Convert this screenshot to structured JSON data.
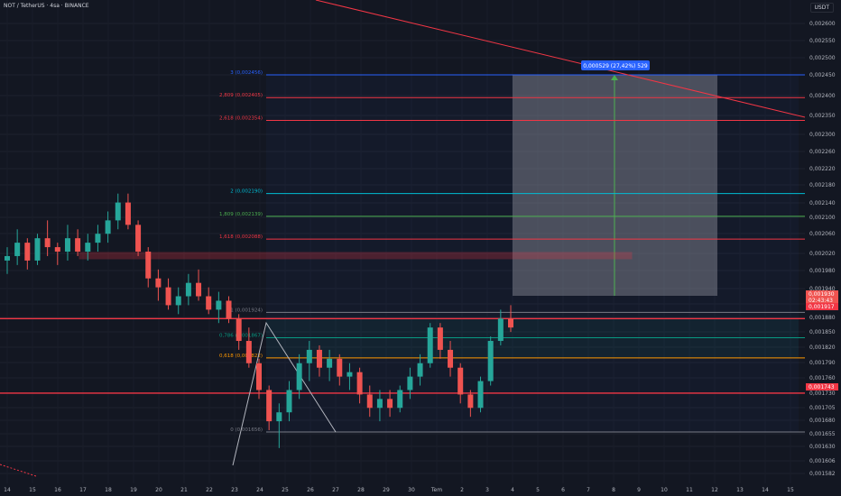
{
  "header": {
    "symbol": "NOT / TetherUS · 4sa · BINANCE",
    "currency": "USDT"
  },
  "colors": {
    "background": "#131722",
    "up": "#26a69a",
    "down": "#ef5350",
    "fib_top": "#2962ff",
    "fib_red": "#f23645",
    "fib_cyan": "#00bcd4",
    "fib_green": "#4caf50",
    "fib_orange": "#ff9800",
    "fib_teal": "#089981",
    "hline": "#f23645",
    "tooltip": "#2962ff"
  },
  "chart_data": {
    "type": "candlestick",
    "x_labels": [
      "14",
      "15",
      "16",
      "17",
      "18",
      "19",
      "20",
      "21",
      "22",
      "23",
      "24",
      "25",
      "26",
      "27",
      "28",
      "29",
      "30",
      "Tem",
      "2",
      "3",
      "4",
      "5",
      "6",
      "7",
      "8",
      "9",
      "10",
      "11",
      "12",
      "13",
      "14",
      "15"
    ],
    "y_ticks": [
      "0,002600",
      "0,002550",
      "0,002500",
      "0,002450",
      "0,002400",
      "0,002350",
      "0,002300",
      "0,002260",
      "0,002220",
      "0,002180",
      "0,002140",
      "0,002100",
      "0,002060",
      "0,002020",
      "0,001980",
      "0,001940",
      "0,001900",
      "0,001880",
      "0,001850",
      "0,001820",
      "0,001790",
      "0,001760",
      "0,001730",
      "0,001705",
      "0,001680",
      "0,001655",
      "0,001630",
      "0,001606",
      "0,001582"
    ],
    "fib_levels": [
      {
        "label": "3 (0,002456)",
        "value": 0.002456,
        "color": "#2962ff"
      },
      {
        "label": "2,809 (0,002405)",
        "value": 0.002405,
        "color": "#f23645"
      },
      {
        "label": "2,618 (0,002354)",
        "value": 0.002354,
        "color": "#f23645"
      },
      {
        "label": "2 (0,002190)",
        "value": 0.00219,
        "color": "#00bcd4"
      },
      {
        "label": "1,809 (0,002139)",
        "value": 0.002139,
        "color": "#4caf50"
      },
      {
        "label": "1,618 (0,002088)",
        "value": 0.002088,
        "color": "#f23645"
      },
      {
        "label": "1 (0,001924)",
        "value": 0.001924,
        "color": "#787b86"
      },
      {
        "label": "0,786 (0,001867)",
        "value": 0.001867,
        "color": "#089981"
      },
      {
        "label": "0,618 (0,001822)",
        "value": 0.001822,
        "color": "#ff9800"
      },
      {
        "label": "0 (0,001656)",
        "value": 0.001656,
        "color": "#787b86"
      }
    ],
    "horizontal_lines": [
      0.00191,
      0.001743
    ],
    "price_badges": [
      {
        "text": "0,001930",
        "color": "#ef5350"
      },
      {
        "text": "02:43:43",
        "color": "#ef5350"
      },
      {
        "text": "0,001917",
        "color": "#f23645"
      },
      {
        "text": "0,001743",
        "color": "#f23645"
      }
    ],
    "measure_label": "0,000529 (27,42%) 529",
    "candles": [
      [
        0.00204,
        0.00207,
        0.00201,
        0.00205
      ],
      [
        0.00205,
        0.00211,
        0.00203,
        0.00208
      ],
      [
        0.00208,
        0.00209,
        0.00202,
        0.00204
      ],
      [
        0.00204,
        0.0021,
        0.00203,
        0.00209
      ],
      [
        0.00209,
        0.00213,
        0.00205,
        0.00207
      ],
      [
        0.00207,
        0.00208,
        0.00203,
        0.00206
      ],
      [
        0.00206,
        0.00212,
        0.00204,
        0.00209
      ],
      [
        0.00209,
        0.00211,
        0.00205,
        0.00206
      ],
      [
        0.00206,
        0.0021,
        0.00204,
        0.00208
      ],
      [
        0.00208,
        0.00212,
        0.00206,
        0.0021
      ],
      [
        0.0021,
        0.00215,
        0.00208,
        0.00213
      ],
      [
        0.00213,
        0.00219,
        0.00211,
        0.00217
      ],
      [
        0.00217,
        0.00219,
        0.00211,
        0.00212
      ],
      [
        0.00212,
        0.00213,
        0.00205,
        0.00206
      ],
      [
        0.00206,
        0.00207,
        0.00198,
        0.002
      ],
      [
        0.002,
        0.00202,
        0.00195,
        0.00198
      ],
      [
        0.00198,
        0.002,
        0.00193,
        0.00194
      ],
      [
        0.00194,
        0.00198,
        0.00192,
        0.00196
      ],
      [
        0.00196,
        0.00201,
        0.00194,
        0.00199
      ],
      [
        0.00199,
        0.00202,
        0.00195,
        0.00196
      ],
      [
        0.00196,
        0.00198,
        0.00192,
        0.00193
      ],
      [
        0.00193,
        0.00197,
        0.0019,
        0.00195
      ],
      [
        0.00195,
        0.00196,
        0.0019,
        0.00191
      ],
      [
        0.00191,
        0.00192,
        0.00184,
        0.00186
      ],
      [
        0.00186,
        0.00189,
        0.0018,
        0.00181
      ],
      [
        0.00181,
        0.00182,
        0.00173,
        0.00175
      ],
      [
        0.00175,
        0.00176,
        0.00166,
        0.00168
      ],
      [
        0.00168,
        0.00172,
        0.00162,
        0.0017
      ],
      [
        0.0017,
        0.00177,
        0.00168,
        0.00175
      ],
      [
        0.00175,
        0.00183,
        0.00173,
        0.00181
      ],
      [
        0.00181,
        0.00186,
        0.00177,
        0.00184
      ],
      [
        0.00184,
        0.00185,
        0.00178,
        0.0018
      ],
      [
        0.0018,
        0.00184,
        0.00177,
        0.00182
      ],
      [
        0.00182,
        0.00183,
        0.00176,
        0.00178
      ],
      [
        0.00178,
        0.00181,
        0.00175,
        0.00179
      ],
      [
        0.00179,
        0.0018,
        0.00172,
        0.00174
      ],
      [
        0.00174,
        0.00176,
        0.00169,
        0.00171
      ],
      [
        0.00171,
        0.00175,
        0.00168,
        0.00173
      ],
      [
        0.00173,
        0.00175,
        0.00169,
        0.00171
      ],
      [
        0.00171,
        0.00176,
        0.0017,
        0.00175
      ],
      [
        0.00175,
        0.0018,
        0.00173,
        0.00178
      ],
      [
        0.00178,
        0.00183,
        0.00176,
        0.00181
      ],
      [
        0.00181,
        0.0019,
        0.0018,
        0.00189
      ],
      [
        0.00189,
        0.0019,
        0.00182,
        0.00184
      ],
      [
        0.00184,
        0.00186,
        0.00178,
        0.0018
      ],
      [
        0.0018,
        0.00181,
        0.00172,
        0.00174
      ],
      [
        0.00174,
        0.00175,
        0.00169,
        0.00171
      ],
      [
        0.00171,
        0.00178,
        0.0017,
        0.00177
      ],
      [
        0.00177,
        0.00187,
        0.00176,
        0.00186
      ],
      [
        0.00186,
        0.00193,
        0.00185,
        0.00191
      ],
      [
        0.00191,
        0.00194,
        0.00188,
        0.00189
      ]
    ]
  }
}
